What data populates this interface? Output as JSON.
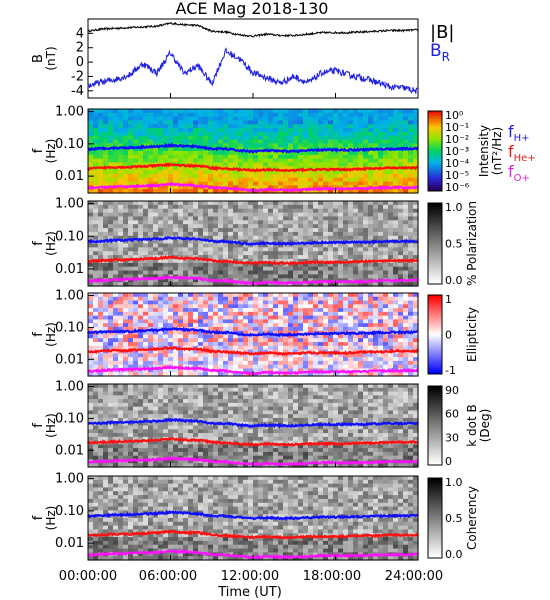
{
  "chart_data": [
    {
      "type": "line",
      "title": "ACE Mag 2018-130",
      "ylabel_main": "B",
      "ylabel_unit": "(nT)",
      "ylim": [
        -5,
        6
      ],
      "yticks": [
        "4",
        "2",
        "0",
        "-2",
        "-4"
      ],
      "ytick_values": [
        4,
        2,
        0,
        -2,
        -4
      ],
      "legend": [
        {
          "name": "|B|",
          "color": "#000000"
        },
        {
          "name": "B",
          "sub": "R",
          "color": "#2020e0"
        }
      ],
      "x_hours": [
        0,
        1,
        2,
        3,
        4,
        5,
        6,
        7,
        8,
        9,
        10,
        11,
        12,
        13,
        14,
        15,
        16,
        17,
        18,
        19,
        20,
        21,
        22,
        23,
        24
      ],
      "series": [
        {
          "name": "|B|",
          "color": "#000000",
          "values": [
            4.3,
            4.6,
            4.7,
            4.8,
            4.9,
            5.0,
            5.4,
            5.2,
            5.1,
            4.3,
            4.2,
            3.8,
            3.6,
            3.9,
            3.7,
            3.7,
            3.9,
            4.1,
            4.1,
            4.1,
            4.2,
            4.3,
            4.4,
            4.4,
            4.5
          ]
        },
        {
          "name": "B_R",
          "color": "#2020e0",
          "values": [
            -3.3,
            -2.8,
            -2.4,
            -1.8,
            -0.2,
            -1.5,
            1.3,
            -1.6,
            -0.5,
            -3.0,
            1.5,
            0.5,
            -1.5,
            -2.2,
            -2.9,
            -2.0,
            -2.9,
            -1.5,
            -1.2,
            -1.8,
            -2.2,
            -2.8,
            -3.5,
            -3.6,
            -4.1
          ]
        }
      ]
    },
    {
      "type": "heatmap",
      "ylabel_main": "f",
      "ylabel_unit": "(Hz)",
      "yticks": [
        "1.00",
        "0.10",
        "0.01"
      ],
      "ytick_values": [
        1.0,
        0.1,
        0.01
      ],
      "ylim": [
        0.003,
        1.2
      ],
      "colorbar_label": "Intensity",
      "colorbar_unit": "(nT²/Hz)",
      "colorbar_ticks": [
        "10⁰",
        "10⁻¹",
        "10⁻²",
        "10⁻³",
        "10⁻⁴",
        "10⁻⁵",
        "10⁻⁶"
      ],
      "colormap": "rainbow",
      "side_legend": [
        {
          "name": "f",
          "sub": "H+",
          "color": "#2020e0"
        },
        {
          "name": "f",
          "sub": "He+",
          "color": "#e02020"
        },
        {
          "name": "f",
          "sub": "O+",
          "color": "#e020e0"
        }
      ]
    },
    {
      "type": "heatmap",
      "ylabel_main": "f",
      "ylabel_unit": "(Hz)",
      "yticks": [
        "1.00",
        "0.10",
        "0.01"
      ],
      "ytick_values": [
        1.0,
        0.1,
        0.01
      ],
      "ylim": [
        0.003,
        1.2
      ],
      "colorbar_label": "% Polarization",
      "colorbar_ticks": [
        "1.0",
        "0.5",
        "0.0"
      ],
      "colormap": "grey"
    },
    {
      "type": "heatmap",
      "ylabel_main": "f",
      "ylabel_unit": "(Hz)",
      "yticks": [
        "1.00",
        "0.10",
        "0.01"
      ],
      "ytick_values": [
        1.0,
        0.1,
        0.01
      ],
      "ylim": [
        0.003,
        1.2
      ],
      "colorbar_label": "Ellipticity",
      "colorbar_ticks": [
        "1",
        "0",
        "-1"
      ],
      "colormap": "red-white-blue"
    },
    {
      "type": "heatmap",
      "ylabel_main": "f",
      "ylabel_unit": "(Hz)",
      "yticks": [
        "1.00",
        "0.10",
        "0.01"
      ],
      "ytick_values": [
        1.0,
        0.1,
        0.01
      ],
      "ylim": [
        0.003,
        1.2
      ],
      "colorbar_label": "k dot B",
      "colorbar_unit": "(Deg)",
      "colorbar_ticks": [
        "90",
        "60",
        "30",
        "0"
      ],
      "colormap": "grey"
    },
    {
      "type": "heatmap",
      "ylabel_main": "f",
      "ylabel_unit": "(Hz)",
      "yticks": [
        "1.00",
        "0.10",
        "0.01"
      ],
      "ytick_values": [
        1.0,
        0.1,
        0.01
      ],
      "ylim": [
        0.003,
        1.2
      ],
      "colorbar_label": "Coherency",
      "colorbar_ticks": [
        "1.0",
        "0.5",
        "0.0"
      ],
      "colormap": "grey"
    }
  ],
  "gyro_lines": {
    "x_hours": [
      0,
      1,
      2,
      3,
      4,
      5,
      6,
      7,
      8,
      9,
      10,
      11,
      12,
      13,
      14,
      15,
      16,
      17,
      18,
      19,
      20,
      21,
      22,
      23,
      24
    ],
    "series": [
      {
        "name": "fH+",
        "color": "#1010ff",
        "values": [
          0.068,
          0.072,
          0.075,
          0.076,
          0.08,
          0.082,
          0.09,
          0.085,
          0.082,
          0.07,
          0.07,
          0.062,
          0.058,
          0.062,
          0.059,
          0.059,
          0.062,
          0.065,
          0.065,
          0.065,
          0.066,
          0.068,
          0.07,
          0.07,
          0.071
        ]
      },
      {
        "name": "fHe+",
        "color": "#ff1010",
        "values": [
          0.017,
          0.018,
          0.019,
          0.019,
          0.02,
          0.021,
          0.023,
          0.021,
          0.021,
          0.018,
          0.017,
          0.016,
          0.015,
          0.016,
          0.015,
          0.015,
          0.016,
          0.016,
          0.016,
          0.016,
          0.017,
          0.017,
          0.018,
          0.018,
          0.018
        ]
      },
      {
        "name": "fO+",
        "color": "#ff10ff",
        "values": [
          0.0042,
          0.0045,
          0.0047,
          0.0048,
          0.005,
          0.0051,
          0.0056,
          0.0053,
          0.0051,
          0.0044,
          0.0044,
          0.0039,
          0.0036,
          0.0039,
          0.0037,
          0.0037,
          0.0039,
          0.0041,
          0.0041,
          0.0041,
          0.0041,
          0.0043,
          0.0044,
          0.0044,
          0.0045
        ]
      }
    ]
  },
  "x_axis": {
    "label": "Time (UT)",
    "ticks": [
      "00:00:00",
      "06:00:00",
      "12:00:00",
      "18:00:00",
      "24:00:00"
    ],
    "tick_hours": [
      0,
      6,
      12,
      18,
      24
    ]
  }
}
